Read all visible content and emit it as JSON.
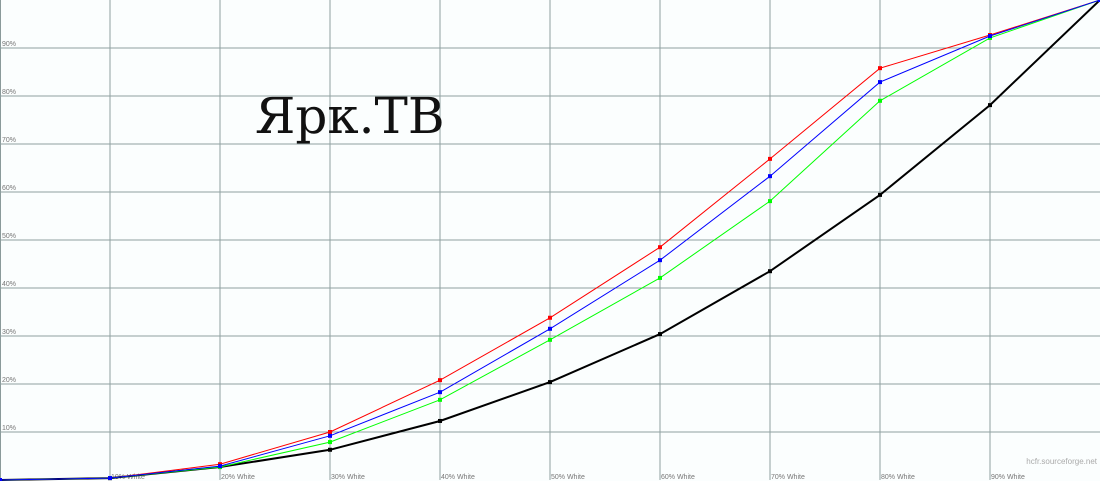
{
  "chart_data": {
    "type": "line",
    "title": "Ярк.ТВ",
    "watermark": "hcfr.sourceforge.net",
    "x": [
      0,
      10,
      20,
      30,
      40,
      50,
      60,
      70,
      80,
      90,
      100
    ],
    "xtick_labels": [
      "10% White",
      "20% White",
      "30% White",
      "40% White",
      "50% White",
      "60% White",
      "70% White",
      "80% White",
      "90% White"
    ],
    "ytick_labels": [
      "10%",
      "20%",
      "30%",
      "40%",
      "50%",
      "60%",
      "70%",
      "80%",
      "90%"
    ],
    "xlim": [
      0,
      100
    ],
    "ylim": [
      0,
      100
    ],
    "grid": true,
    "series": [
      {
        "color": "#000000",
        "width": 2,
        "values": [
          0,
          0.4,
          2.7,
          6.3,
          12.3,
          20.4,
          30.4,
          43.5,
          59.4,
          78.1,
          100
        ]
      },
      {
        "color": "#ff0000",
        "width": 1,
        "values": [
          0,
          0.4,
          3.3,
          10.0,
          20.8,
          33.8,
          48.5,
          66.9,
          85.8,
          92.7,
          100
        ]
      },
      {
        "color": "#00ff00",
        "width": 1,
        "values": [
          0,
          0.4,
          2.7,
          7.9,
          16.7,
          29.2,
          42.1,
          58.1,
          79.0,
          92.1,
          100
        ]
      },
      {
        "color": "#0000ff",
        "width": 1,
        "values": [
          0,
          0.4,
          2.9,
          9.2,
          18.3,
          31.5,
          45.8,
          63.3,
          82.9,
          92.5,
          100
        ]
      }
    ]
  }
}
